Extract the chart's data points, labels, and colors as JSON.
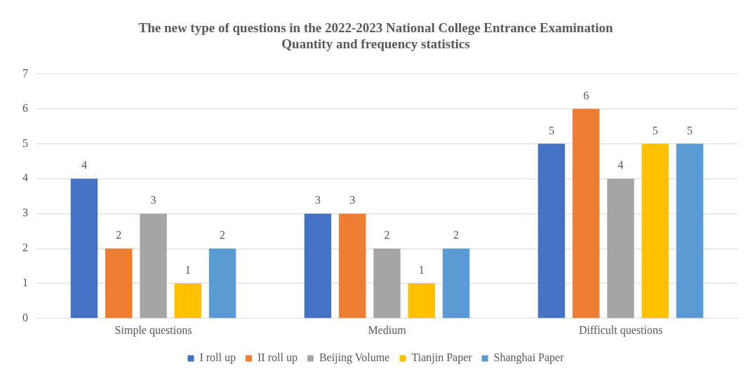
{
  "chart_data": {
    "type": "bar",
    "title": "The new type of questions in the 2022-2023 National College Entrance Examination\nQuantity and frequency statistics",
    "categories": [
      "Simple questions",
      "Medium",
      "Difficult questions"
    ],
    "series": [
      {
        "name": "I roll up",
        "color": "#4472c4",
        "values": [
          4,
          3,
          5
        ]
      },
      {
        "name": "II roll up",
        "color": "#ed7d31",
        "values": [
          2,
          3,
          6
        ]
      },
      {
        "name": "Beijing Volume",
        "color": "#a5a5a5",
        "values": [
          3,
          2,
          4
        ]
      },
      {
        "name": "Tianjin Paper",
        "color": "#ffc000",
        "values": [
          1,
          1,
          5
        ]
      },
      {
        "name": "Shanghai Paper",
        "color": "#5b9bd5",
        "values": [
          2,
          2,
          5
        ]
      }
    ],
    "ylim": [
      0,
      7
    ],
    "yticks": [
      0,
      1,
      2,
      3,
      4,
      5,
      6,
      7
    ],
    "grid": "y",
    "legend": "bottom",
    "data_labels": true
  }
}
